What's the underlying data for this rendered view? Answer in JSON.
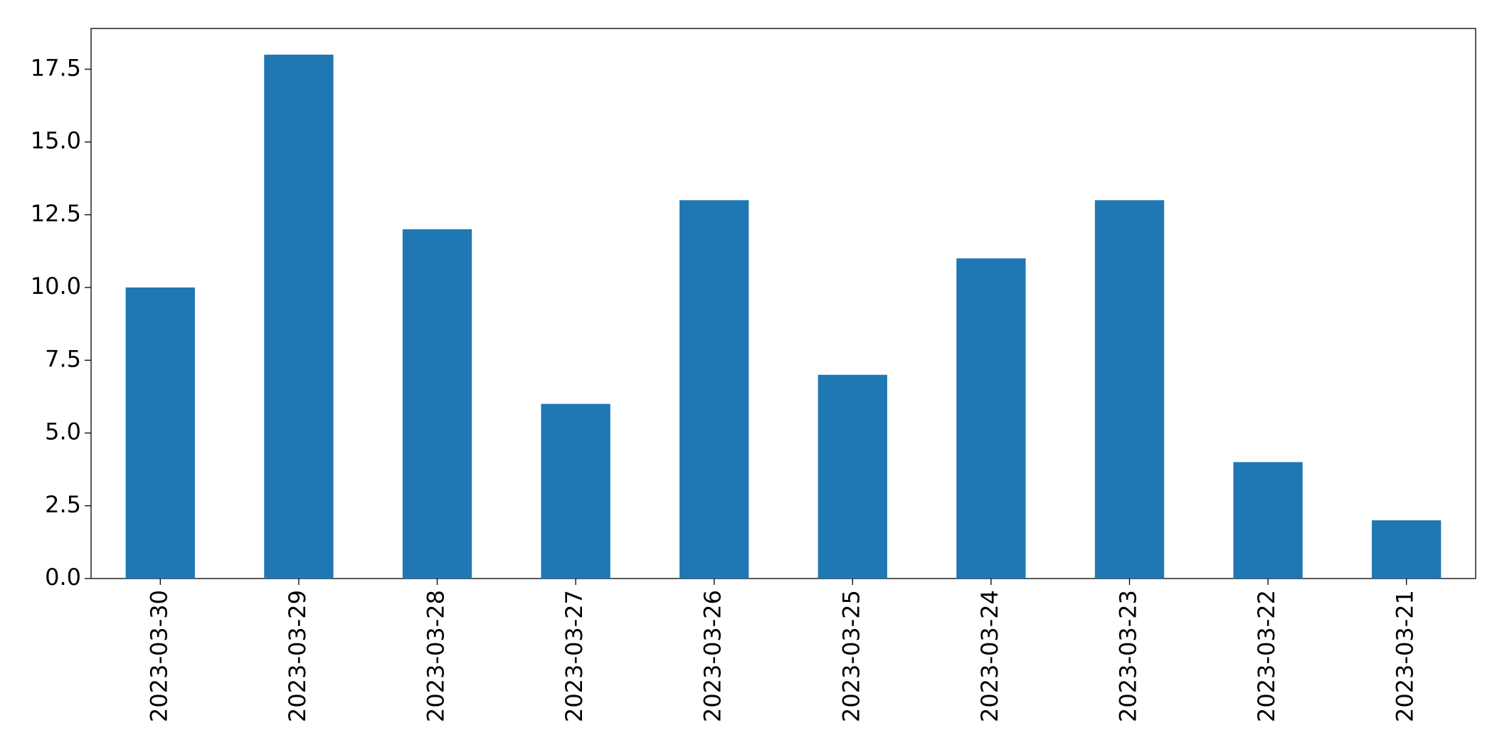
{
  "chart_data": {
    "type": "bar",
    "categories": [
      "2023-03-30",
      "2023-03-29",
      "2023-03-28",
      "2023-03-27",
      "2023-03-26",
      "2023-03-25",
      "2023-03-24",
      "2023-03-23",
      "2023-03-22",
      "2023-03-21"
    ],
    "values": [
      10,
      18,
      12,
      6,
      13,
      7,
      11,
      13,
      4,
      2
    ],
    "color": "#1f77b4",
    "ylim": [
      0,
      18.9
    ],
    "yticks": [
      {
        "value": 0,
        "label": "0.0"
      },
      {
        "value": 2.5,
        "label": "2.5"
      },
      {
        "value": 5,
        "label": "5.0"
      },
      {
        "value": 7.5,
        "label": "7.5"
      },
      {
        "value": 10,
        "label": "10.0"
      },
      {
        "value": 12.5,
        "label": "12.5"
      },
      {
        "value": 15,
        "label": "15.0"
      },
      {
        "value": 17.5,
        "label": "17.5"
      }
    ],
    "grid": false
  }
}
